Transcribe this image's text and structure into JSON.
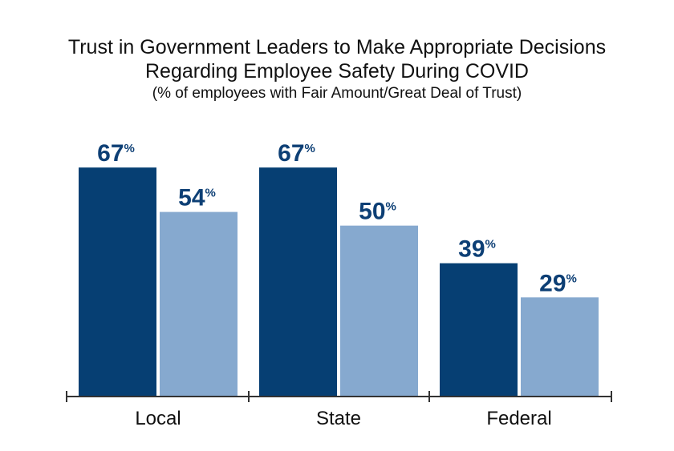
{
  "chart_data": {
    "type": "bar",
    "title_lines": [
      "Trust in Government Leaders to Make Appropriate Decisions",
      "Regarding Employee Safety During COVID"
    ],
    "subtitle": "(% of employees with Fair Amount/Great Deal of Trust)",
    "categories": [
      "Local",
      "State",
      "Federal"
    ],
    "series": [
      {
        "name": "series-1",
        "values": [
          67,
          67,
          39
        ],
        "labels": [
          "67",
          "67",
          "39"
        ]
      },
      {
        "name": "series-2",
        "values": [
          54,
          50,
          29
        ],
        "labels": [
          "54",
          "50",
          "29"
        ]
      }
    ],
    "unit": "%",
    "ylim": [
      0,
      100
    ],
    "grid": false,
    "legend": "none",
    "xlabel": "",
    "ylabel": ""
  },
  "colors": {
    "series-1": "#063f73",
    "series-2": "#86a9cf",
    "axis": "#333333",
    "label": "#0d3f75"
  }
}
